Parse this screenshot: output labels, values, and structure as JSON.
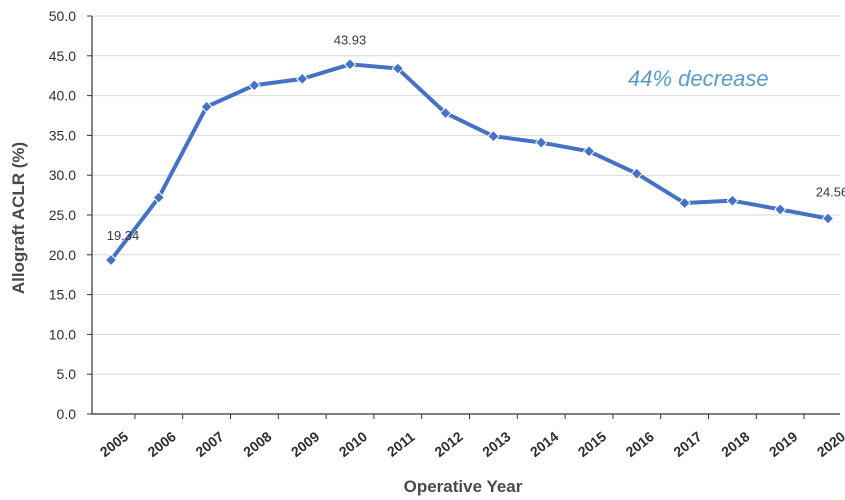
{
  "chart_data": {
    "type": "line",
    "title": "",
    "xlabel": "Operative Year",
    "ylabel": "Allograft ACLR (%)",
    "ylim": [
      0,
      50
    ],
    "yticks": [
      "0.0",
      "5.0",
      "10.0",
      "15.0",
      "20.0",
      "25.0",
      "30.0",
      "35.0",
      "40.0",
      "45.0",
      "50.0"
    ],
    "categories": [
      "2005",
      "2006",
      "2007",
      "2008",
      "2009",
      "2010",
      "2011",
      "2012",
      "2013",
      "2014",
      "2015",
      "2016",
      "2017",
      "2018",
      "2019",
      "2020"
    ],
    "series": [
      {
        "values": [
          19.34,
          27.2,
          38.6,
          41.3,
          42.1,
          43.93,
          43.4,
          37.8,
          34.9,
          34.1,
          33.0,
          30.2,
          26.5,
          26.8,
          25.7,
          24.56
        ]
      }
    ],
    "data_labels": [
      {
        "index": 0,
        "text": "19.34"
      },
      {
        "index": 5,
        "text": "43.93"
      },
      {
        "index": 15,
        "text": "24.56"
      }
    ],
    "annotation": "44% decrease",
    "grid": true,
    "line_color": "#4472c4",
    "annotation_color": "#5b9bc9"
  }
}
